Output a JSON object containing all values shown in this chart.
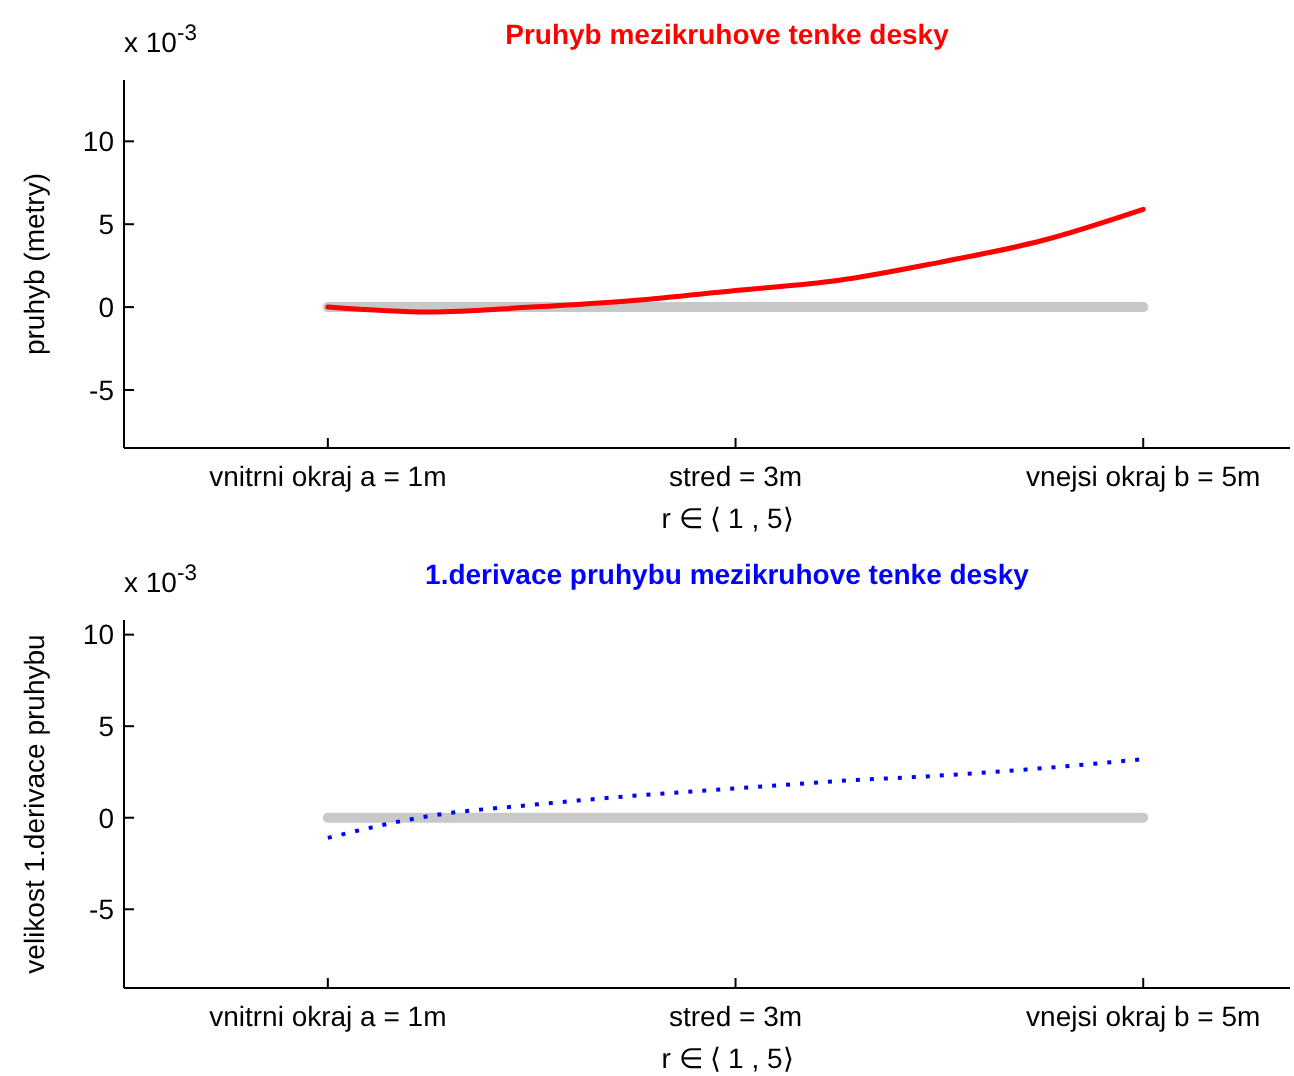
{
  "chart_data": [
    {
      "type": "line",
      "title": "Pruhyb mezikruhove tenke desky",
      "xlabel": "r ∈ ⟨ 1 , 5⟩",
      "ylabel": "pruhyb (metry)",
      "annotations": [
        "x 10$^{-3}$"
      ],
      "xlim": [
        0,
        5.72
      ],
      "xticks": [
        {
          "value": 1,
          "label": "vnitrni okraj a = 1m"
        },
        {
          "value": 3,
          "label": "stred = 3m"
        },
        {
          "value": 5,
          "label": "vnejsi okraj b = 5m"
        }
      ],
      "ylim": [
        -8.5,
        13.7
      ],
      "yticks": [
        -5,
        0,
        5,
        10
      ],
      "series": [
        {
          "color": "#c8c8c8",
          "x": [
            1,
            5
          ],
          "values": [
            0,
            0
          ],
          "line_style": "solid"
        },
        {
          "color": "#ff0000",
          "x": [
            1,
            1.5,
            2,
            2.5,
            3,
            3.5,
            4,
            4.5,
            5
          ],
          "values": [
            0,
            -0.3,
            0,
            0.4,
            1.0,
            1.6,
            2.7,
            4.0,
            5.9
          ],
          "line_style": "solid"
        }
      ]
    },
    {
      "type": "line",
      "title": "1.derivace pruhybu mezikruhove tenke desky",
      "xlabel": "r ∈ ⟨ 1 , 5⟩",
      "ylabel": "velikost 1.derivace pruhybu",
      "annotations": [
        "x 10$^{-3}$"
      ],
      "xlim": [
        0,
        5.72
      ],
      "xticks": [
        {
          "value": 1,
          "label": "vnitrni okraj a = 1m"
        },
        {
          "value": 3,
          "label": "stred = 3m"
        },
        {
          "value": 5,
          "label": "vnejsi okraj b = 5m"
        }
      ],
      "ylim": [
        -9.3,
        10.8
      ],
      "yticks": [
        -5,
        0,
        5,
        10
      ],
      "series": [
        {
          "color": "#c8c8c8",
          "x": [
            1,
            5
          ],
          "values": [
            0,
            0
          ],
          "line_style": "solid"
        },
        {
          "color": "#0000ff",
          "x": [
            1,
            1.5,
            2,
            2.5,
            3,
            3.5,
            4,
            4.5,
            5
          ],
          "values": [
            -1.1,
            0.1,
            0.7,
            1.2,
            1.6,
            2.0,
            2.3,
            2.7,
            3.2
          ],
          "line_style": "dotted"
        }
      ]
    }
  ]
}
